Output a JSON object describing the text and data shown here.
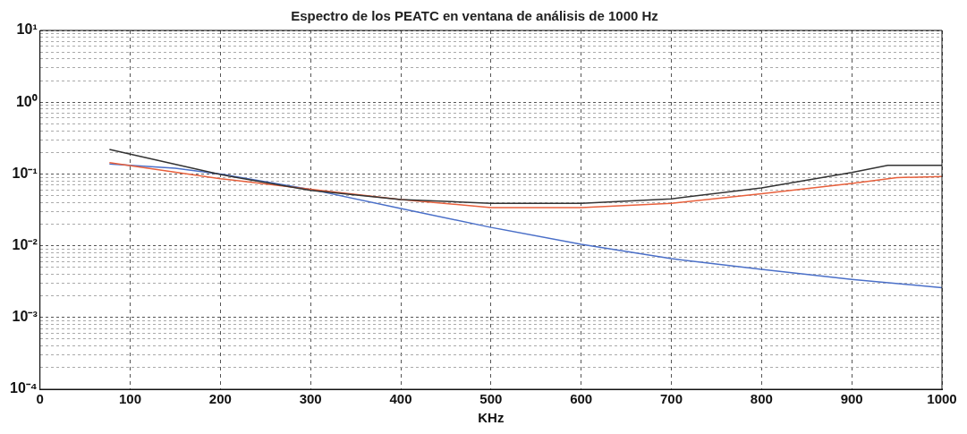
{
  "chart_data": {
    "type": "line",
    "title": "Espectro de los PEATC en ventana de análisis de 1000 Hz",
    "xlabel": "KHz",
    "xlim": [
      0,
      1000
    ],
    "xticks": [
      0,
      100,
      200,
      300,
      400,
      500,
      600,
      700,
      800,
      900,
      1000
    ],
    "ylim": [
      0.0001,
      10
    ],
    "yticks": [
      {
        "value": 0.0001,
        "label": "10⁻⁴"
      },
      {
        "value": 0.001,
        "label": "10⁻³"
      },
      {
        "value": 0.01,
        "label": "10⁻²"
      },
      {
        "value": 0.1,
        "label": "10⁻¹"
      },
      {
        "value": 1,
        "label": "10⁰"
      },
      {
        "value": 10,
        "label": "10¹"
      }
    ],
    "log": "y",
    "grid": true,
    "legend": false,
    "marker": "none",
    "line_style": "solid",
    "series": [
      {
        "color": "#333333",
        "x": [
          77,
          200,
          300,
          400,
          500,
          600,
          700,
          800,
          900,
          940,
          1000
        ],
        "values": [
          0.22,
          0.098,
          0.059,
          0.044,
          0.039,
          0.039,
          0.045,
          0.064,
          0.105,
          0.132,
          0.132
        ]
      },
      {
        "color": "#e8603c",
        "x": [
          77,
          200,
          300,
          400,
          500,
          600,
          700,
          800,
          900,
          950,
          1000
        ],
        "values": [
          0.144,
          0.086,
          0.061,
          0.044,
          0.034,
          0.034,
          0.039,
          0.053,
          0.074,
          0.089,
          0.092
        ]
      },
      {
        "color": "#4a6fc8",
        "x": [
          77,
          150,
          200,
          300,
          400,
          500,
          600,
          700,
          800,
          900,
          1000
        ],
        "values": [
          0.138,
          0.12,
          0.1,
          0.061,
          0.033,
          0.018,
          0.0105,
          0.0066,
          0.0047,
          0.0034,
          0.0026
        ]
      }
    ]
  }
}
